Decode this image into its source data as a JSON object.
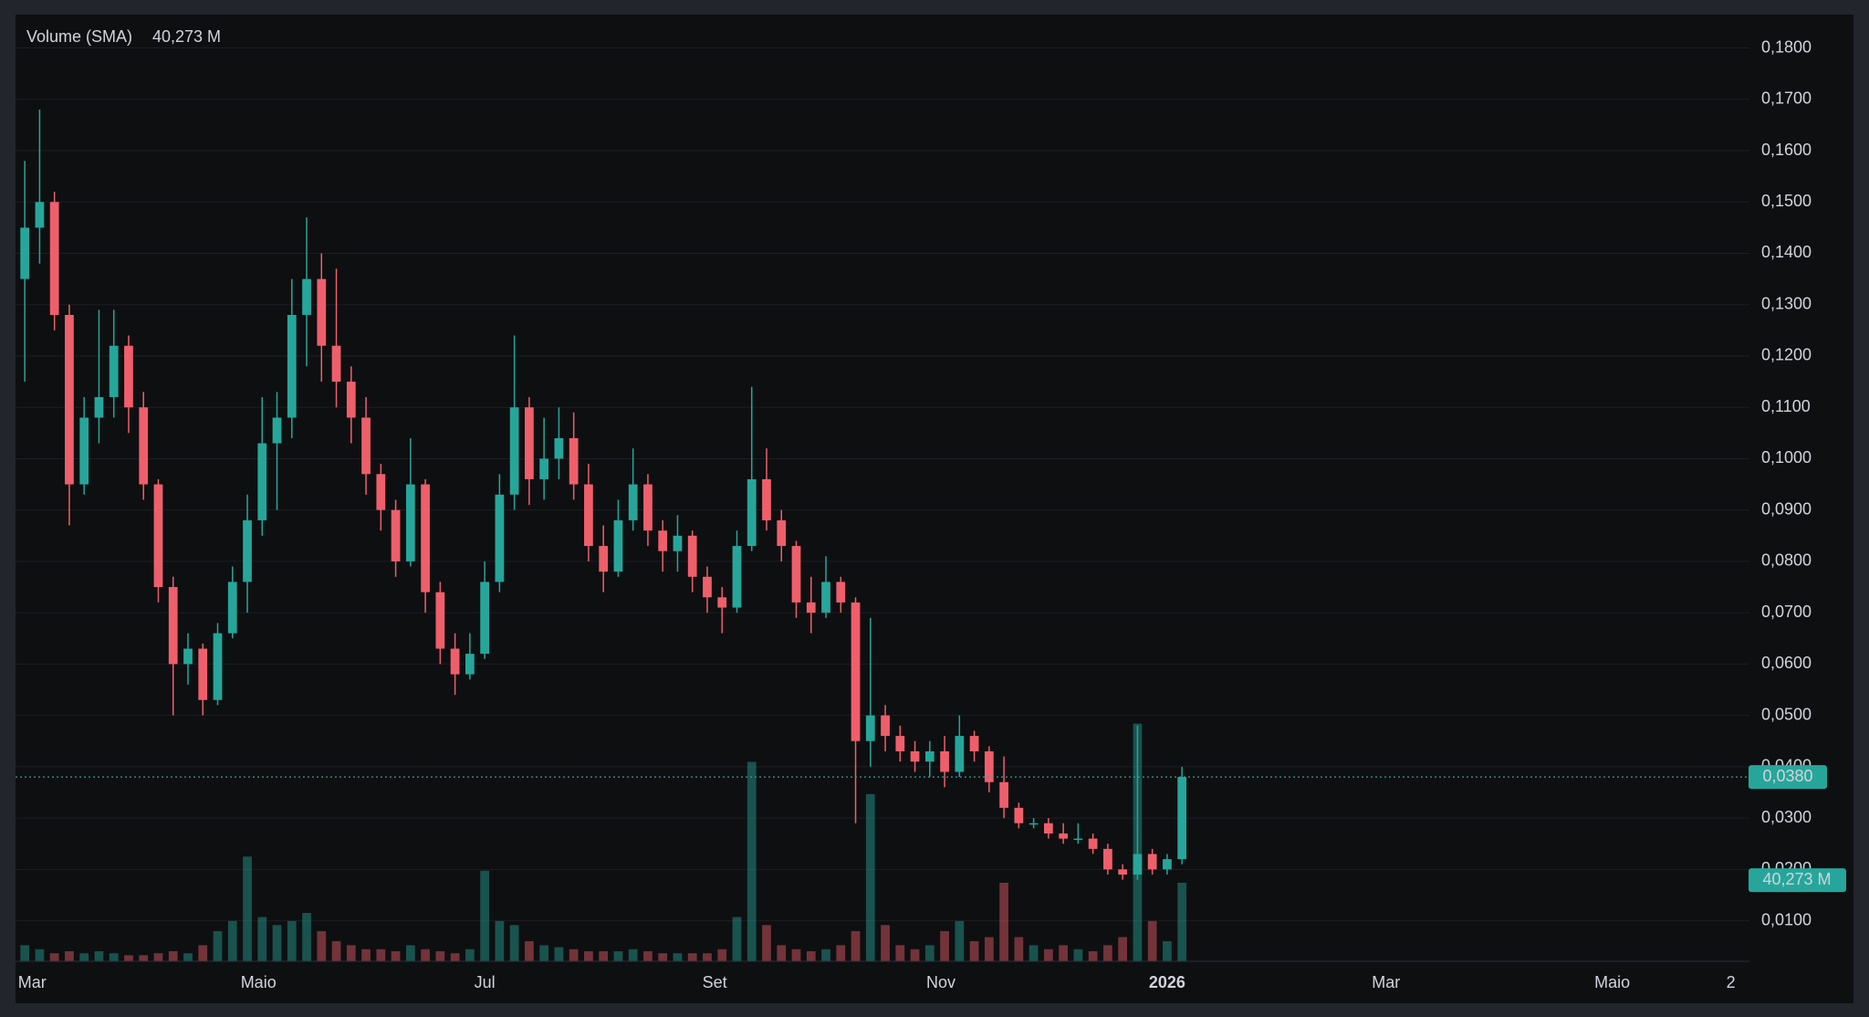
{
  "chart_data": {
    "type": "candlestick",
    "legend_label": "Volume (SMA)",
    "volume_sma": {
      "value": 40.273,
      "label": "40,273 M"
    },
    "last_price": {
      "value": 0.038,
      "label": "0,0380"
    },
    "up_color": "#26a69a",
    "down_color": "#ef5f6b",
    "grid": true,
    "x": [
      -2,
      2,
      6,
      10,
      14,
      18,
      22,
      26,
      30,
      34,
      38,
      42,
      46,
      50,
      54,
      58,
      62,
      66,
      70,
      74,
      78,
      82,
      86,
      90,
      94,
      98,
      102,
      106,
      110,
      114,
      118,
      122,
      126,
      130,
      134,
      138,
      142,
      146,
      150,
      154,
      158,
      162,
      166,
      170,
      174,
      178,
      182,
      186,
      190,
      194,
      198,
      202,
      206,
      210,
      214,
      218,
      222,
      226,
      230,
      234,
      238,
      242,
      246,
      250,
      254,
      258,
      262,
      266,
      270,
      274,
      278,
      282,
      286,
      290,
      294,
      298,
      302,
      306,
      310
    ],
    "open": [
      0.135,
      0.145,
      0.15,
      0.128,
      0.095,
      0.108,
      0.112,
      0.122,
      0.11,
      0.095,
      0.075,
      0.06,
      0.063,
      0.053,
      0.066,
      0.076,
      0.088,
      0.103,
      0.108,
      0.128,
      0.135,
      0.122,
      0.115,
      0.108,
      0.097,
      0.09,
      0.08,
      0.095,
      0.074,
      0.063,
      0.058,
      0.062,
      0.076,
      0.093,
      0.11,
      0.096,
      0.1,
      0.104,
      0.095,
      0.083,
      0.078,
      0.088,
      0.095,
      0.086,
      0.082,
      0.085,
      0.077,
      0.073,
      0.071,
      0.083,
      0.096,
      0.088,
      0.083,
      0.072,
      0.07,
      0.076,
      0.072,
      0.045,
      0.05,
      0.046,
      0.043,
      0.041,
      0.043,
      0.039,
      0.046,
      0.043,
      0.037,
      0.032,
      0.029,
      0.029,
      0.027,
      0.026,
      0.026,
      0.024,
      0.02,
      0.019,
      0.023,
      0.02,
      0.022
    ],
    "high": [
      0.158,
      0.168,
      0.152,
      0.13,
      0.112,
      0.129,
      0.129,
      0.124,
      0.113,
      0.096,
      0.077,
      0.066,
      0.064,
      0.068,
      0.079,
      0.093,
      0.112,
      0.113,
      0.135,
      0.147,
      0.14,
      0.137,
      0.118,
      0.112,
      0.099,
      0.092,
      0.104,
      0.096,
      0.076,
      0.066,
      0.066,
      0.08,
      0.097,
      0.124,
      0.112,
      0.108,
      0.11,
      0.109,
      0.099,
      0.087,
      0.092,
      0.102,
      0.097,
      0.088,
      0.089,
      0.086,
      0.079,
      0.075,
      0.086,
      0.114,
      0.102,
      0.09,
      0.084,
      0.077,
      0.081,
      0.077,
      0.073,
      0.069,
      0.052,
      0.048,
      0.045,
      0.045,
      0.046,
      0.05,
      0.047,
      0.044,
      0.042,
      0.033,
      0.03,
      0.03,
      0.029,
      0.029,
      0.027,
      0.025,
      0.021,
      0.048,
      0.024,
      0.023,
      0.04
    ],
    "low": [
      0.115,
      0.138,
      0.125,
      0.087,
      0.093,
      0.103,
      0.108,
      0.105,
      0.092,
      0.072,
      0.05,
      0.056,
      0.05,
      0.052,
      0.065,
      0.07,
      0.085,
      0.09,
      0.104,
      0.118,
      0.115,
      0.11,
      0.103,
      0.093,
      0.086,
      0.077,
      0.079,
      0.07,
      0.06,
      0.054,
      0.057,
      0.061,
      0.074,
      0.09,
      0.091,
      0.092,
      0.096,
      0.092,
      0.08,
      0.074,
      0.077,
      0.086,
      0.083,
      0.078,
      0.078,
      0.074,
      0.07,
      0.066,
      0.07,
      0.082,
      0.086,
      0.08,
      0.069,
      0.066,
      0.069,
      0.07,
      0.029,
      0.04,
      0.043,
      0.041,
      0.039,
      0.038,
      0.036,
      0.038,
      0.041,
      0.035,
      0.03,
      0.028,
      0.028,
      0.026,
      0.025,
      0.025,
      0.023,
      0.019,
      0.018,
      0.018,
      0.019,
      0.019,
      0.021
    ],
    "close": [
      0.145,
      0.15,
      0.128,
      0.095,
      0.108,
      0.112,
      0.122,
      0.11,
      0.095,
      0.075,
      0.06,
      0.063,
      0.053,
      0.066,
      0.076,
      0.088,
      0.103,
      0.108,
      0.128,
      0.135,
      0.122,
      0.115,
      0.108,
      0.097,
      0.09,
      0.08,
      0.095,
      0.074,
      0.063,
      0.058,
      0.062,
      0.076,
      0.093,
      0.11,
      0.096,
      0.1,
      0.104,
      0.095,
      0.083,
      0.078,
      0.088,
      0.095,
      0.086,
      0.082,
      0.085,
      0.077,
      0.073,
      0.071,
      0.083,
      0.096,
      0.088,
      0.083,
      0.072,
      0.07,
      0.076,
      0.072,
      0.045,
      0.05,
      0.046,
      0.043,
      0.041,
      0.043,
      0.039,
      0.046,
      0.043,
      0.037,
      0.032,
      0.029,
      0.029,
      0.027,
      0.026,
      0.026,
      0.024,
      0.02,
      0.019,
      0.023,
      0.02,
      0.022,
      0.038
    ],
    "volume": [
      8,
      6,
      4,
      5,
      4,
      5,
      4,
      3,
      3,
      4,
      5,
      4,
      8,
      15,
      20,
      52,
      22,
      18,
      20,
      24,
      15,
      10,
      8,
      6,
      6,
      5,
      8,
      6,
      5,
      4,
      6,
      45,
      20,
      18,
      10,
      8,
      7,
      6,
      5,
      5,
      5,
      6,
      5,
      4,
      4,
      4,
      4,
      6,
      22,
      99,
      18,
      8,
      6,
      5,
      6,
      8,
      15,
      83,
      18,
      8,
      6,
      8,
      15,
      20,
      10,
      12,
      39,
      12,
      8,
      6,
      8,
      6,
      5,
      8,
      12,
      118,
      20,
      10,
      39
    ],
    "volume_lim": [
      0,
      470
    ],
    "xlim": [
      -4.5,
      463
    ],
    "xticks": [
      {
        "value": 0,
        "label": "Mar"
      },
      {
        "value": 61,
        "label": "Maio"
      },
      {
        "value": 122,
        "label": "Jul"
      },
      {
        "value": 184,
        "label": "Set"
      },
      {
        "value": 245,
        "label": "Nov"
      },
      {
        "value": 306,
        "label": "2026"
      },
      {
        "value": 365,
        "label": "Mar"
      },
      {
        "value": 426,
        "label": "Maio"
      },
      {
        "value": 458,
        "label": "2"
      }
    ],
    "ylim": [
      0.0021,
      0.1865
    ],
    "yticks": [
      {
        "value": 0.01,
        "label": "0,0100"
      },
      {
        "value": 0.02,
        "label": "0,0200"
      },
      {
        "value": 0.03,
        "label": "0,0300"
      },
      {
        "value": 0.04,
        "label": "0,0400"
      },
      {
        "value": 0.05,
        "label": "0,0500"
      },
      {
        "value": 0.06,
        "label": "0,0600"
      },
      {
        "value": 0.07,
        "label": "0,0700"
      },
      {
        "value": 0.08,
        "label": "0,0800"
      },
      {
        "value": 0.09,
        "label": "0,0900"
      },
      {
        "value": 0.1,
        "label": "0,1000"
      },
      {
        "value": 0.11,
        "label": "0,1100"
      },
      {
        "value": 0.12,
        "label": "0,1200"
      },
      {
        "value": 0.13,
        "label": "0,1300"
      },
      {
        "value": 0.14,
        "label": "0,1400"
      },
      {
        "value": 0.15,
        "label": "0,1500"
      },
      {
        "value": 0.16,
        "label": "0,1600"
      },
      {
        "value": 0.17,
        "label": "0,1700"
      },
      {
        "value": 0.18,
        "label": "0,1800"
      }
    ]
  }
}
